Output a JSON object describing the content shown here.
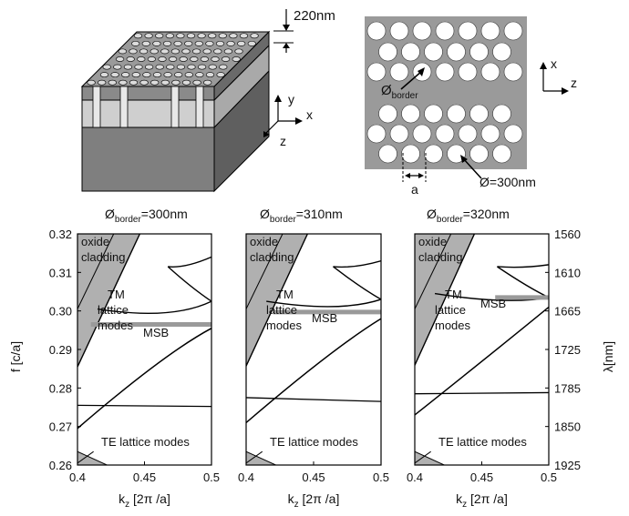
{
  "device": {
    "thickness_label": "220nm",
    "axis_y": "y",
    "axis_x": "x",
    "axis_z": "z"
  },
  "topview": {
    "axis_x": "x",
    "axis_z": "z",
    "border_symbol": "Ø",
    "border_sub": "border",
    "hole_label": "Ø=300nm",
    "period_label": "a"
  },
  "figure": {
    "y_left_label": "f [c/a]",
    "y_right_label": "λ[nm]",
    "x_label_main": "k",
    "x_label_sub": "z",
    "x_label_rest": " [2π /a]",
    "x_ticks": [
      "0.4",
      "0.45",
      "0.5"
    ],
    "y_left_ticks": [
      "0.32",
      "0.31",
      "0.30",
      "0.29",
      "0.28",
      "0.27",
      "0.26"
    ],
    "y_right_ticks": [
      "1560",
      "1610",
      "1665",
      "1725",
      "1785",
      "1850",
      "1925"
    ],
    "oxide_label_1": "oxide",
    "oxide_label_2": "cladding",
    "tm_label_1": "TM",
    "tm_label_2": "lattice",
    "tm_label_3": "modes",
    "msb_label": "MSB",
    "te_label": "TE lattice modes",
    "panel_titles": [
      {
        "prefix": "Ø",
        "sub": "border",
        "value": "=300nm"
      },
      {
        "prefix": "Ø",
        "sub": "border",
        "value": "=310nm"
      },
      {
        "prefix": "Ø",
        "sub": "border",
        "value": "=320nm"
      }
    ]
  },
  "chart_data": [
    {
      "type": "line",
      "title": "Øborder=300nm",
      "xlabel": "kz [2π /a]",
      "ylabel": "f [c/a]",
      "xlim": [
        0.4,
        0.5
      ],
      "ylim": [
        0.26,
        0.32
      ],
      "series": [
        {
          "name": "TM lattice modes",
          "x": [
            0.4,
            0.45,
            0.5
          ],
          "y": [
            0.2695,
            0.285,
            0.2955
          ]
        },
        {
          "name": "MSB",
          "x": [
            0.41,
            0.5
          ],
          "y": [
            0.2965,
            0.2965
          ]
        },
        {
          "name": "TE lattice modes",
          "x": [
            0.4,
            0.5
          ],
          "y": [
            0.2755,
            0.2752
          ]
        }
      ]
    },
    {
      "type": "line",
      "title": "Øborder=310nm",
      "xlabel": "kz [2π /a]",
      "ylim": [
        0.26,
        0.32
      ],
      "xlim": [
        0.4,
        0.5
      ],
      "series": [
        {
          "name": "TM lattice modes",
          "x": [
            0.4,
            0.45,
            0.5
          ],
          "y": [
            0.271,
            0.2865,
            0.298
          ]
        },
        {
          "name": "MSB",
          "x": [
            0.42,
            0.5
          ],
          "y": [
            0.2997,
            0.2997
          ]
        },
        {
          "name": "TE lattice modes",
          "x": [
            0.4,
            0.5
          ],
          "y": [
            0.2775,
            0.2765
          ]
        }
      ]
    },
    {
      "type": "line",
      "title": "Øborder=320nm",
      "xlabel": "kz [2π /a]",
      "ylabel": "λ[nm]",
      "xlim": [
        0.4,
        0.5
      ],
      "ylim": [
        0.26,
        0.32
      ],
      "series": [
        {
          "name": "TM lattice modes",
          "x": [
            0.4,
            0.45,
            0.5
          ],
          "y": [
            0.273,
            0.287,
            0.301
          ]
        },
        {
          "name": "MSB",
          "x": [
            0.46,
            0.5
          ],
          "y": [
            0.3035,
            0.3035
          ]
        },
        {
          "name": "TE lattice modes",
          "x": [
            0.4,
            0.5
          ],
          "y": [
            0.2785,
            0.2788
          ]
        }
      ]
    }
  ]
}
